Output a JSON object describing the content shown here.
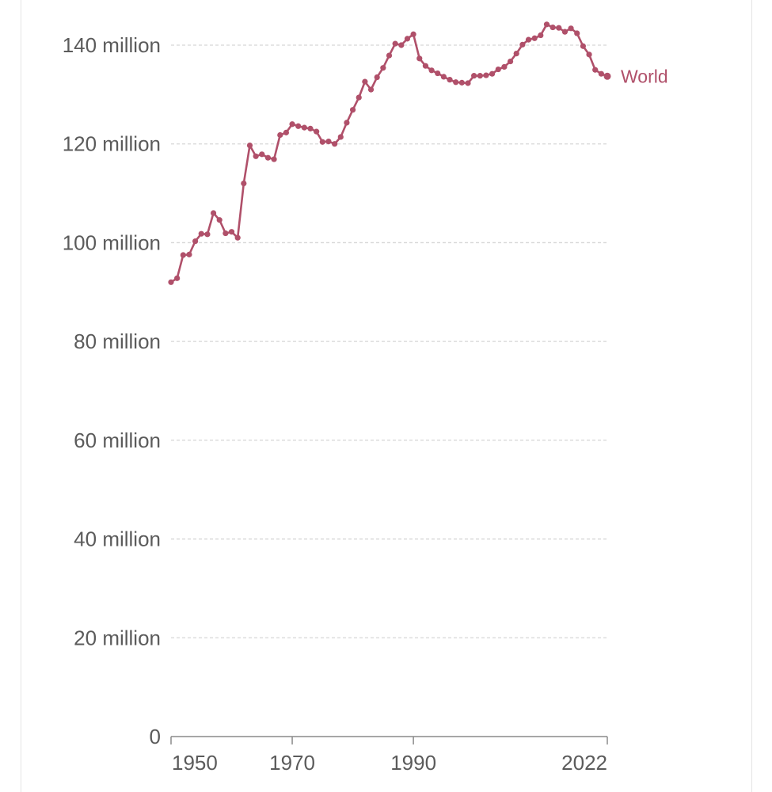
{
  "chart_data": {
    "type": "line",
    "y_tick_labels": [
      "0",
      "20 million",
      "40 million",
      "60 million",
      "80 million",
      "100 million",
      "120 million",
      "140 million"
    ],
    "y_tick_values": [
      0,
      20000000,
      40000000,
      60000000,
      80000000,
      100000000,
      120000000,
      140000000
    ],
    "x_tick_labels": [
      "1950",
      "1970",
      "1990",
      "2022"
    ],
    "x_tick_values": [
      1950,
      1970,
      1990,
      2022
    ],
    "xlim": [
      1950,
      2022
    ],
    "ylim": [
      0,
      140000000
    ],
    "grid": true,
    "series": [
      {
        "name": "World",
        "color": "#b0506a",
        "x": [
          1950,
          1951,
          1952,
          1953,
          1954,
          1955,
          1956,
          1957,
          1958,
          1959,
          1960,
          1961,
          1962,
          1963,
          1964,
          1965,
          1966,
          1967,
          1968,
          1969,
          1970,
          1971,
          1972,
          1973,
          1974,
          1975,
          1976,
          1977,
          1978,
          1979,
          1980,
          1981,
          1982,
          1983,
          1984,
          1985,
          1986,
          1987,
          1988,
          1989,
          1990,
          1991,
          1992,
          1993,
          1994,
          1995,
          1996,
          1997,
          1998,
          1999,
          2000,
          2001,
          2002,
          2003,
          2004,
          2005,
          2006,
          2007,
          2008,
          2009,
          2010,
          2011,
          2012,
          2013,
          2014,
          2015,
          2016,
          2017,
          2018,
          2019,
          2020,
          2021,
          2022
        ],
        "values": [
          92000000,
          92800000,
          97500000,
          97600000,
          100300000,
          101800000,
          101700000,
          106000000,
          104600000,
          101900000,
          102200000,
          101000000,
          112000000,
          119700000,
          117500000,
          117900000,
          117200000,
          116900000,
          121800000,
          122300000,
          124000000,
          123600000,
          123300000,
          123100000,
          122500000,
          120400000,
          120500000,
          120000000,
          121400000,
          124300000,
          126900000,
          129400000,
          132600000,
          131000000,
          133500000,
          135400000,
          137900000,
          140300000,
          140000000,
          141300000,
          142200000,
          137300000,
          135800000,
          134900000,
          134300000,
          133600000,
          133000000,
          132500000,
          132400000,
          132300000,
          133800000,
          133800000,
          133900000,
          134200000,
          135100000,
          135600000,
          136700000,
          138300000,
          140100000,
          141100000,
          141400000,
          142000000,
          144200000,
          143600000,
          143500000,
          142700000,
          143400000,
          142400000,
          139800000,
          138100000,
          135000000,
          134200000,
          133700000
        ]
      }
    ]
  }
}
